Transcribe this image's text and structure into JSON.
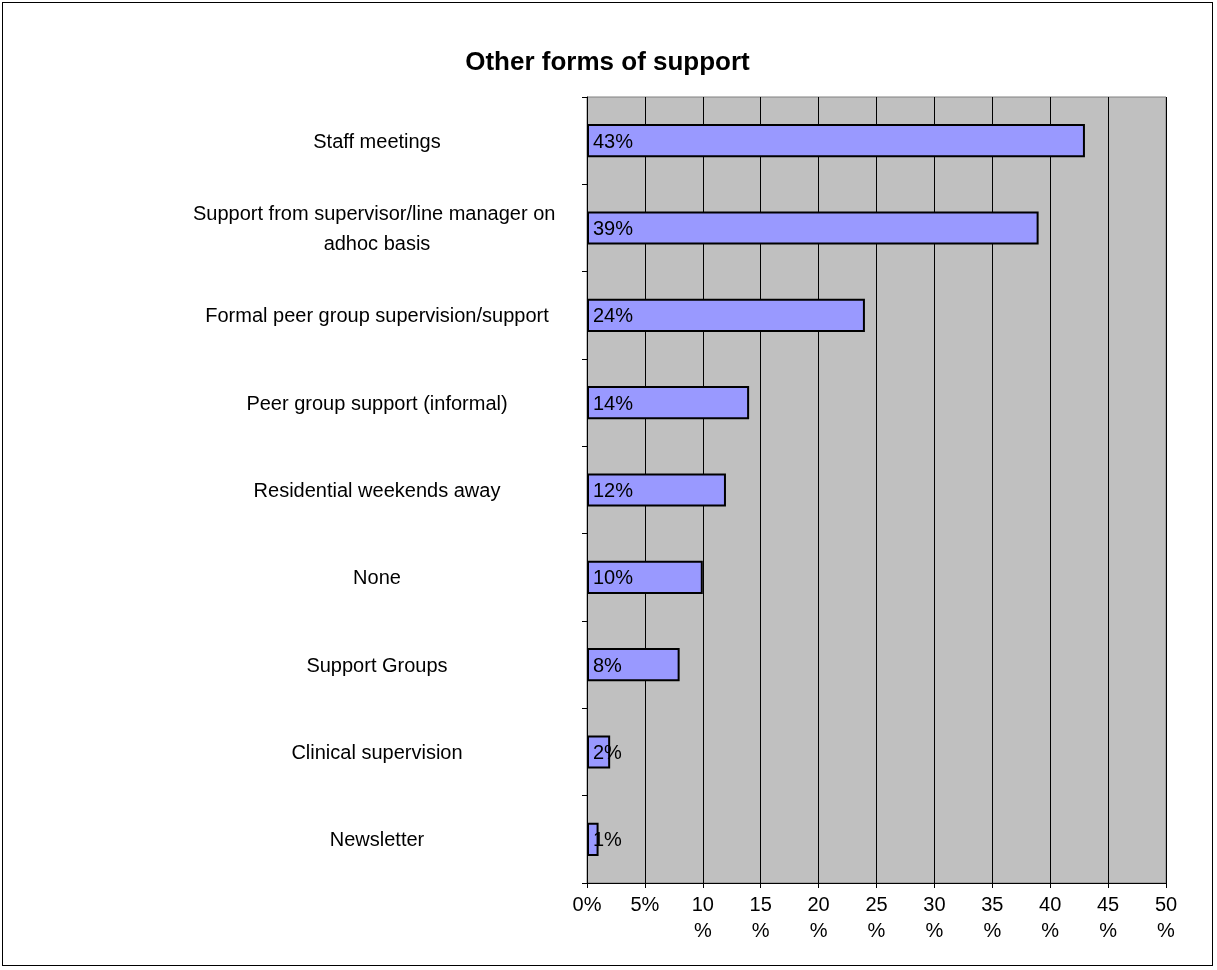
{
  "chart_data": {
    "type": "bar",
    "orientation": "horizontal",
    "title": "Other forms of support",
    "categories": [
      "Staff meetings",
      "Support from supervisor/line manager on adhoc basis",
      "Formal peer group supervision/support",
      "Peer group support (informal)",
      "Residential weekends away",
      "None",
      "Support Groups",
      "Clinical supervision",
      "Newsletter"
    ],
    "values": [
      43,
      39,
      24,
      14,
      12,
      10,
      8,
      2,
      1
    ],
    "value_labels": [
      "43%",
      "39%",
      "24%",
      "14%",
      "12%",
      "10%",
      "8%",
      "2%",
      "1%"
    ],
    "color": "#9999ff",
    "xlim": [
      0,
      50
    ],
    "xticks": [
      {
        "value": 0,
        "label": "0%"
      },
      {
        "value": 5,
        "label": "5%"
      },
      {
        "value": 10,
        "label": "10 %"
      },
      {
        "value": 15,
        "label": "15 %"
      },
      {
        "value": 20,
        "label": "20 %"
      },
      {
        "value": 25,
        "label": "25 %"
      },
      {
        "value": 30,
        "label": "30 %"
      },
      {
        "value": 35,
        "label": "35 %"
      },
      {
        "value": 40,
        "label": "40 %"
      },
      {
        "value": 45,
        "label": "45 %"
      },
      {
        "value": 50,
        "label": "50 %"
      }
    ],
    "grid": "x"
  }
}
